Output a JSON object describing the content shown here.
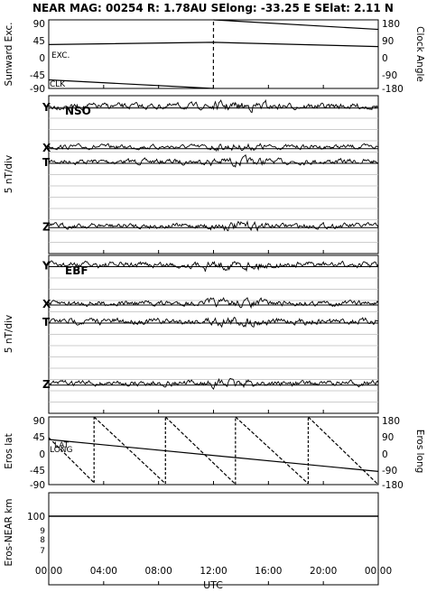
{
  "title": "NEAR MAG: 00254  R: 1.78AU  SElong:  -33.25 E  SElat:    2.11 N",
  "xlabel": "UTC",
  "chart_data": [
    {
      "type": "line",
      "name": "angles",
      "ylabel_left": "Sunward Exc.",
      "ylabel_right": "Clock Angle",
      "left_ticks": [
        "90",
        "45",
        "0",
        "-45",
        "-90"
      ],
      "right_ticks": [
        "180",
        "90",
        "0",
        "-90",
        "-180"
      ],
      "ylim_left": [
        -90,
        90
      ],
      "ylim_right": [
        -180,
        180
      ],
      "tags": [
        "EXC.",
        "CLK"
      ],
      "exc_series": {
        "x": [
          0,
          12,
          24
        ],
        "y": [
          25,
          31,
          20
        ]
      },
      "clk_series": {
        "x": [
          0,
          11.99,
          12.0,
          24
        ],
        "y": [
          -135,
          -180,
          180,
          130
        ]
      }
    },
    {
      "type": "line",
      "name": "nso",
      "panel_title": "NSO",
      "ylabel": "5 nT/div",
      "components": [
        "T",
        "X",
        "Y",
        "Z"
      ],
      "baseline_divs": [
        6.0,
        4.7,
        1.1,
        11.7
      ],
      "noise_divs": [
        0.35,
        0.3,
        0.4,
        0.35
      ]
    },
    {
      "type": "line",
      "name": "ebf",
      "panel_title": "EBF",
      "ylabel": "5 nT/div",
      "components": [
        "T",
        "X",
        "Y",
        "Z"
      ],
      "baseline_divs": [
        6.0,
        4.4,
        1.0,
        11.5
      ],
      "noise_divs": [
        0.4,
        0.35,
        0.4,
        0.35
      ]
    },
    {
      "type": "line",
      "name": "eros",
      "ylabel_left": "Eros lat",
      "ylabel_right": "Eros long",
      "left_ticks": [
        "90",
        "45",
        "0",
        "-45",
        "-90"
      ],
      "right_ticks": [
        "180",
        "90",
        "0",
        "-90",
        "-180"
      ],
      "ylim_left": [
        -90,
        90
      ],
      "ylim_right": [
        -180,
        180
      ],
      "tags": [
        "LAT",
        "LONG"
      ],
      "lat_series": {
        "x": [
          0,
          24
        ],
        "y": [
          30,
          -55
        ]
      },
      "long_series": {
        "x": [
          0,
          3.3,
          3.3,
          8.5,
          8.5,
          13.6,
          13.6,
          18.9,
          18.9,
          24
        ],
        "y": [
          70,
          -170,
          180,
          -175,
          180,
          -178,
          180,
          -175,
          180,
          -180
        ]
      }
    },
    {
      "type": "line",
      "name": "distance",
      "ylabel": "Eros-NEAR km",
      "ticks": [
        "100",
        "9",
        "8",
        "7"
      ],
      "series": {
        "x": [
          0,
          24
        ],
        "y": [
          100,
          100
        ]
      }
    }
  ],
  "x_ticks": [
    "00:00",
    "04:00",
    "08:00",
    "12:00",
    "16:00",
    "20:00",
    "00:00"
  ],
  "x_range_hours": [
    0,
    24
  ]
}
